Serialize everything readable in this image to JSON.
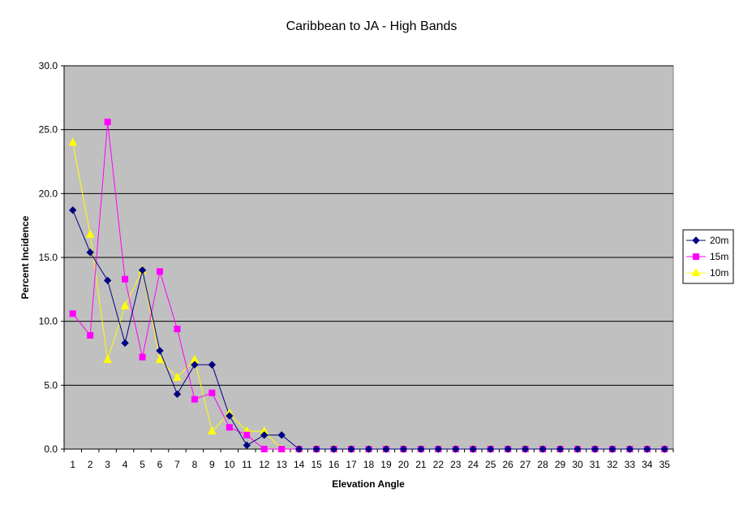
{
  "chart_data": {
    "type": "line",
    "title": "Caribbean to JA - High Bands",
    "xlabel": "Elevation Angle",
    "ylabel": "Percent Incidence",
    "categories": [
      "1",
      "2",
      "3",
      "4",
      "5",
      "6",
      "7",
      "8",
      "9",
      "10",
      "11",
      "12",
      "13",
      "14",
      "15",
      "16",
      "17",
      "18",
      "19",
      "20",
      "21",
      "22",
      "23",
      "24",
      "25",
      "26",
      "27",
      "28",
      "29",
      "30",
      "31",
      "32",
      "33",
      "34",
      "35"
    ],
    "ylim": [
      0,
      30
    ],
    "yticks": [
      "0.0",
      "5.0",
      "10.0",
      "15.0",
      "20.0",
      "25.0",
      "30.0"
    ],
    "grid": true,
    "legend_position": "right",
    "plot_background": "#c0c0c0",
    "series": [
      {
        "name": "20m",
        "color": "#000080",
        "marker": "diamond",
        "values": [
          18.7,
          15.4,
          13.2,
          8.3,
          14.0,
          7.7,
          4.3,
          6.6,
          6.6,
          2.6,
          0.3,
          1.1,
          1.1,
          0,
          0,
          0,
          0,
          0,
          0,
          0,
          0,
          0,
          0,
          0,
          0,
          0,
          0,
          0,
          0,
          0,
          0,
          0,
          0,
          0,
          0
        ]
      },
      {
        "name": "15m",
        "color": "#ff00ff",
        "marker": "square",
        "values": [
          10.6,
          8.9,
          25.6,
          13.3,
          7.2,
          13.9,
          9.4,
          3.9,
          4.4,
          1.7,
          1.1,
          0,
          0,
          0,
          0,
          0,
          0,
          0,
          0,
          0,
          0,
          0,
          0,
          0,
          0,
          0,
          0,
          0,
          0,
          0,
          0,
          0,
          0,
          0,
          0
        ]
      },
      {
        "name": "10m",
        "color": "#ffff00",
        "marker": "triangle",
        "values": [
          24.0,
          16.8,
          7.0,
          11.2,
          14.0,
          7.0,
          5.6,
          7.0,
          1.4,
          2.8,
          1.4,
          1.4,
          0,
          0,
          0,
          0,
          0,
          0,
          0,
          0,
          0,
          0,
          0,
          0,
          0,
          0,
          0,
          0,
          0,
          0,
          0,
          0,
          0,
          0,
          0
        ]
      }
    ]
  }
}
